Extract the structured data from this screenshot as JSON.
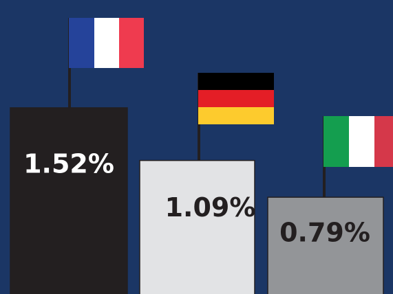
{
  "chart_data": {
    "type": "bar",
    "categories": [
      null,
      null,
      null
    ],
    "values": [
      1.52,
      1.09,
      0.79
    ],
    "value_labels": [
      "1.52%",
      "1.09%",
      "0.79%"
    ],
    "colors": [
      "#231f20",
      "#e2e3e5",
      "#939598"
    ],
    "label_colors": [
      "#ffffff",
      "#231f20",
      "#231f20"
    ],
    "ylim": [
      0,
      2.4
    ]
  }
}
